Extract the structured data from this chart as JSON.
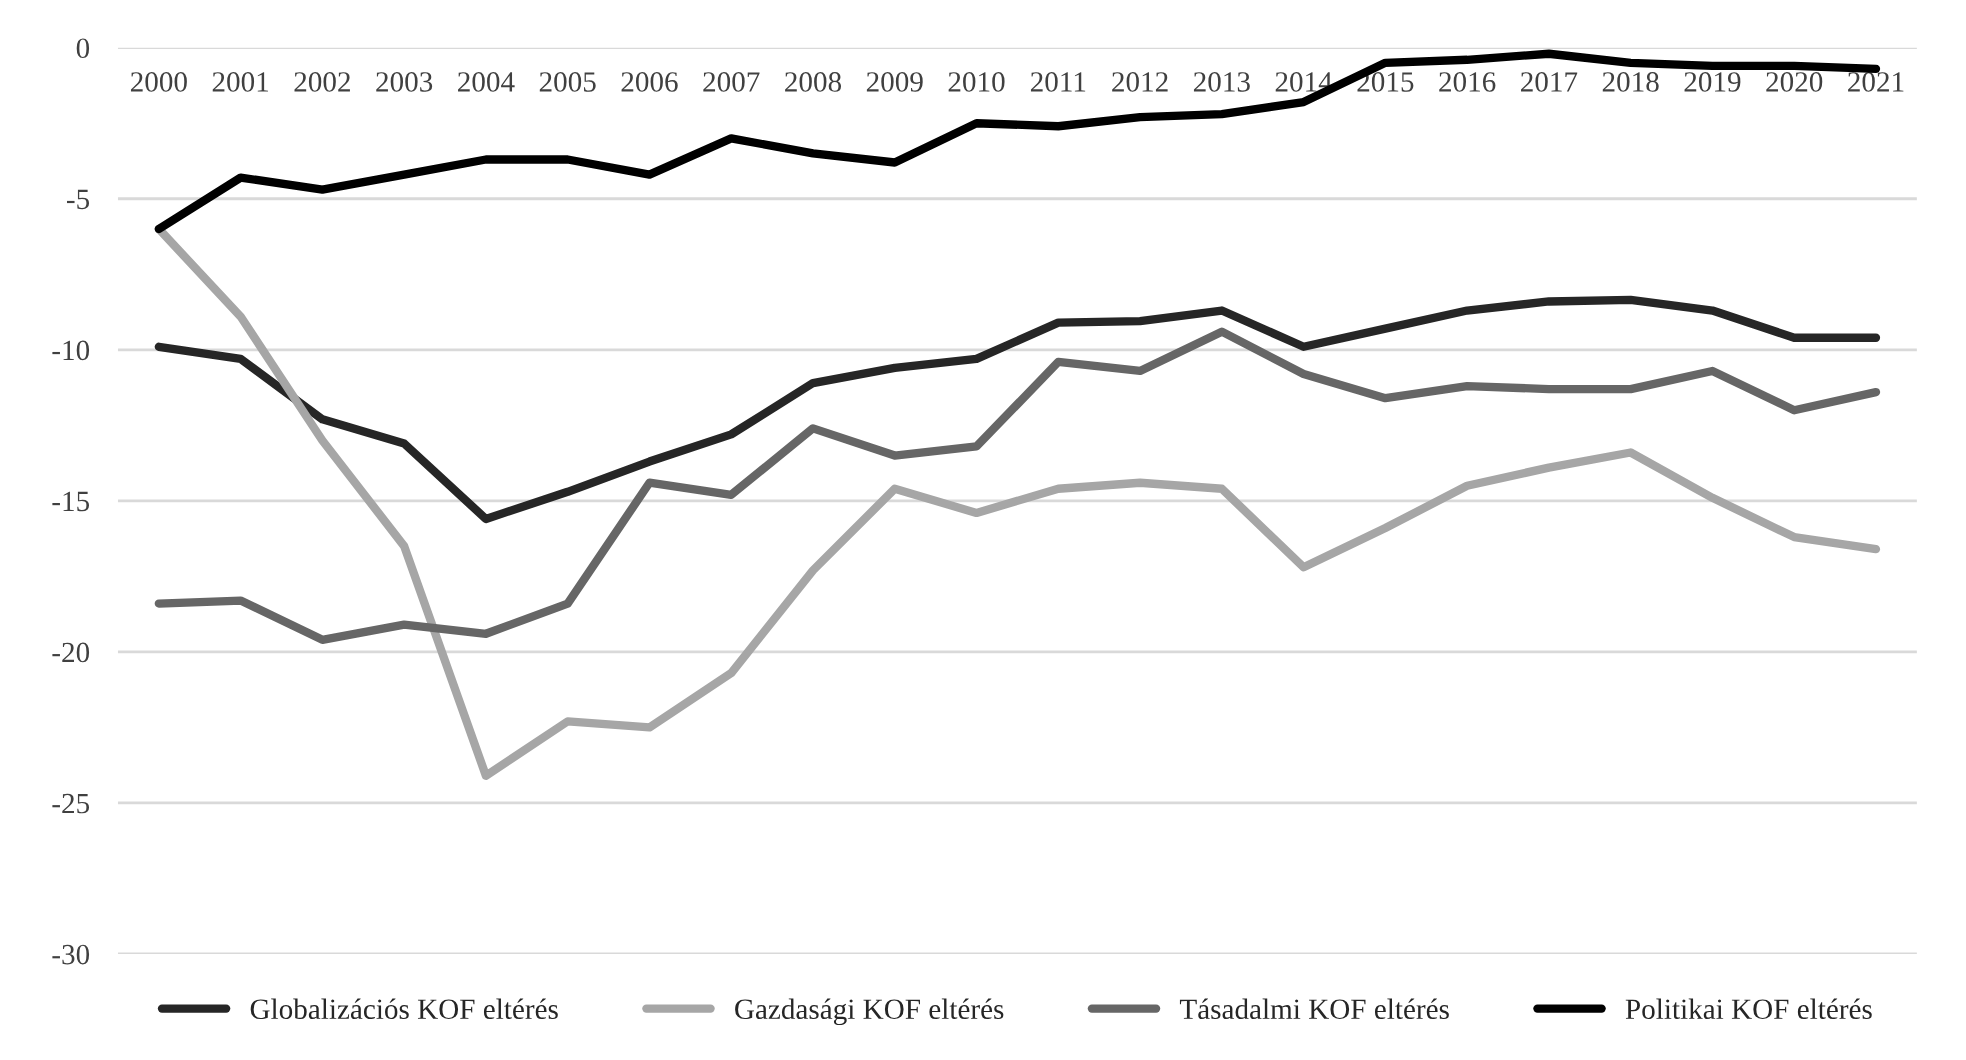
{
  "chart_data": {
    "type": "line",
    "categories": [
      "2000",
      "2001",
      "2002",
      "2003",
      "2004",
      "2005",
      "2006",
      "2007",
      "2008",
      "2009",
      "2010",
      "2011",
      "2012",
      "2013",
      "2014",
      "2015",
      "2016",
      "2017",
      "2018",
      "2019",
      "2020",
      "2021"
    ],
    "series": [
      {
        "name": "Globalizációs KOF eltérés",
        "color": "#262626",
        "values": [
          -9.9,
          -10.3,
          -12.3,
          -13.1,
          -15.6,
          -14.7,
          -13.7,
          -12.8,
          -11.1,
          -10.6,
          -10.3,
          -9.1,
          -9.05,
          -8.7,
          -9.9,
          -9.3,
          -8.7,
          -8.4,
          -8.35,
          -8.7,
          -9.6,
          -9.6
        ]
      },
      {
        "name": "Gazdasági KOF eltérés",
        "color": "#a6a6a6",
        "values": [
          -6.0,
          -8.9,
          -13.0,
          -16.5,
          -24.1,
          -22.3,
          -22.5,
          -20.7,
          -17.3,
          -14.6,
          -15.4,
          -14.6,
          -14.4,
          -14.6,
          -17.2,
          -15.9,
          -14.5,
          -13.9,
          -13.4,
          -14.9,
          -16.2,
          -16.6
        ]
      },
      {
        "name": "Tásadalmi KOF eltérés",
        "color": "#666666",
        "values": [
          -18.4,
          -18.3,
          -19.6,
          -19.1,
          -19.4,
          -18.4,
          -14.4,
          -14.8,
          -12.6,
          -13.5,
          -13.2,
          -10.4,
          -10.7,
          -9.4,
          -10.8,
          -11.6,
          -11.2,
          -11.3,
          -11.3,
          -10.7,
          -12.0,
          -11.4
        ]
      },
      {
        "name": "Politikai KOF eltérés",
        "color": "#000000",
        "values": [
          -6.0,
          -4.3,
          -4.7,
          -4.2,
          -3.7,
          -3.7,
          -4.2,
          -3.0,
          -3.5,
          -3.8,
          -2.5,
          -2.6,
          -2.3,
          -2.2,
          -1.8,
          -0.5,
          -0.4,
          -0.2,
          -0.5,
          -0.6,
          -0.6,
          -0.7
        ]
      }
    ],
    "ylim": [
      -30,
      0
    ],
    "yticks": [
      0,
      -5,
      -10,
      -15,
      -20,
      -25,
      -30
    ],
    "grid": "y",
    "legend": "bottom",
    "marker": "none",
    "line_style": "solid"
  }
}
